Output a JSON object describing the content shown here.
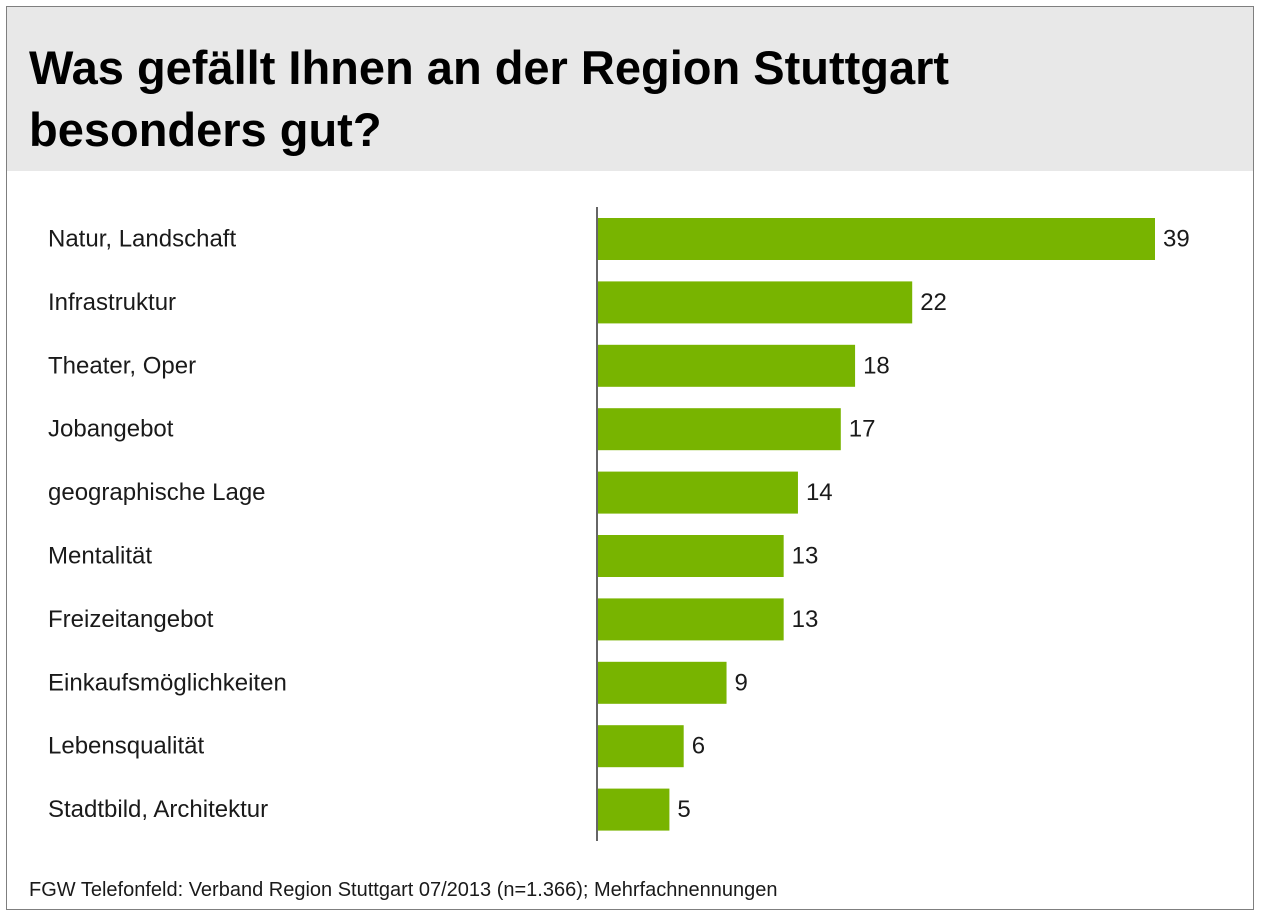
{
  "header": {
    "title_line1": "Was gefällt Ihnen an der Region Stuttgart",
    "title_line2": "besonders gut?"
  },
  "footer": {
    "source": "FGW Telefonfeld: Verband Region Stuttgart 07/2013 (n=1.366); Mehrfachnennungen"
  },
  "colors": {
    "bar": "#78b400",
    "title_band": "#e8e8e8",
    "text": "#1a1a1a"
  },
  "chart_data": {
    "type": "bar",
    "orientation": "horizontal",
    "categories": [
      "Natur, Landschaft",
      "Infrastruktur",
      "Theater, Oper",
      "Jobangebot",
      "geographische Lage",
      "Mentalität",
      "Freizeitangebot",
      "Einkaufsmöglichkeiten",
      "Lebensqualität",
      "Stadtbild, Architektur"
    ],
    "values": [
      39,
      22,
      18,
      17,
      14,
      13,
      13,
      9,
      6,
      5
    ],
    "data_labels": true,
    "xlim": [
      0,
      39
    ],
    "grid": false,
    "legend": "none"
  }
}
